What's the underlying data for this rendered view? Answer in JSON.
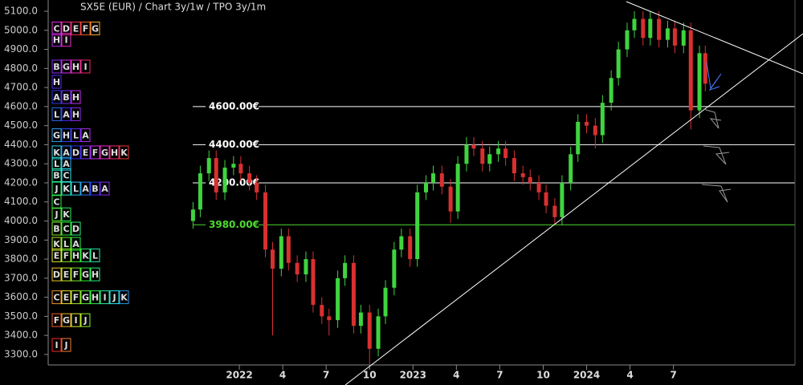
{
  "chart_data": {
    "type": "candlestick",
    "title": "SX5E (EUR) /  Chart 3y/1w / TPO 3y/1m",
    "x": [
      -3.2,
      -2.7,
      -2.1,
      -1.6,
      -1.0,
      -0.4,
      0.1,
      0.7,
      1.2,
      1.8,
      2.3,
      2.9,
      3.4,
      4.0,
      4.6,
      5.1,
      5.7,
      6.2,
      6.8,
      7.3,
      7.9,
      8.4,
      9.0,
      9.6,
      10.1,
      10.7,
      11.2,
      11.8,
      12.3,
      12.9,
      13.4,
      14.0,
      14.6,
      15.1,
      15.7,
      16.2,
      16.8,
      17.3,
      17.9,
      18.4,
      19.0,
      19.6,
      20.1,
      20.7,
      21.2,
      21.8,
      22.3,
      22.9,
      23.4,
      24.0,
      24.6,
      25.1,
      25.7,
      26.2,
      26.8,
      27.3,
      27.9,
      28.4,
      29.0,
      29.6,
      30.1,
      30.7,
      31.2,
      31.8,
      32.2
    ],
    "open": [
      4000,
      4060,
      4250,
      4330,
      4150,
      4280,
      4300,
      4250,
      4200,
      4150,
      3850,
      3750,
      3920,
      3780,
      3720,
      3800,
      3560,
      3500,
      3480,
      3700,
      3780,
      3450,
      3520,
      3330,
      3500,
      3650,
      3850,
      3920,
      3800,
      4150,
      4200,
      4250,
      4180,
      4050,
      4300,
      4400,
      4380,
      4300,
      4350,
      4380,
      4330,
      4250,
      4230,
      4200,
      4150,
      4080,
      4020,
      4200,
      4350,
      4520,
      4500,
      4450,
      4620,
      4750,
      4900,
      5000,
      5060,
      4960,
      5060,
      4950,
      5010,
      4920,
      5000,
      4580,
      4880
    ],
    "high": [
      4100,
      4290,
      4370,
      4370,
      4320,
      4340,
      4340,
      4290,
      4240,
      4190,
      3890,
      3960,
      3960,
      3820,
      3840,
      3840,
      3600,
      3540,
      3740,
      3820,
      3820,
      3560,
      3560,
      3540,
      3690,
      3890,
      3960,
      3960,
      4190,
      4240,
      4290,
      4290,
      4220,
      4340,
      4440,
      4440,
      4420,
      4390,
      4420,
      4420,
      4370,
      4290,
      4270,
      4240,
      4190,
      4120,
      4240,
      4390,
      4560,
      4560,
      4540,
      4660,
      4790,
      4940,
      5040,
      5100,
      5100,
      5100,
      5100,
      5050,
      5050,
      5040,
      5040,
      4920,
      4920
    ],
    "low": [
      3960,
      4020,
      4210,
      4110,
      4110,
      4240,
      4210,
      4160,
      4110,
      3810,
      3400,
      3710,
      3740,
      3680,
      3680,
      3520,
      3460,
      3400,
      3440,
      3660,
      3410,
      3410,
      3250,
      3290,
      3460,
      3610,
      3810,
      3760,
      3760,
      4110,
      4160,
      4140,
      3990,
      4010,
      4260,
      4340,
      4260,
      4260,
      4310,
      4290,
      4210,
      4190,
      4160,
      4110,
      4040,
      3980,
      3980,
      4160,
      4310,
      4460,
      4380,
      4410,
      4580,
      4710,
      4860,
      4960,
      4920,
      4920,
      4910,
      4910,
      4880,
      4880,
      4480,
      4540,
      4680
    ],
    "close": [
      4060,
      4250,
      4330,
      4150,
      4280,
      4300,
      4250,
      4200,
      4150,
      3850,
      3750,
      3920,
      3780,
      3720,
      3800,
      3560,
      3500,
      3480,
      3700,
      3780,
      3450,
      3520,
      3330,
      3500,
      3650,
      3850,
      3920,
      3800,
      4150,
      4200,
      4250,
      4180,
      4050,
      4300,
      4400,
      4380,
      4300,
      4350,
      4380,
      4330,
      4250,
      4230,
      4200,
      4150,
      4080,
      4020,
      4200,
      4350,
      4520,
      4500,
      4450,
      4620,
      4750,
      4900,
      5000,
      5060,
      4960,
      5060,
      4950,
      5010,
      4920,
      5000,
      4580,
      4880,
      4720
    ],
    "up_color": "#3fd43f",
    "down_color": "#d83030",
    "xlim": [
      -13.1,
      38.4
    ],
    "ylim": [
      3245,
      5159
    ],
    "xticks": [
      {
        "value": 0,
        "label": "2022"
      },
      {
        "value": 3,
        "label": "4"
      },
      {
        "value": 6,
        "label": "7"
      },
      {
        "value": 9,
        "label": "10"
      },
      {
        "value": 12,
        "label": "2023"
      },
      {
        "value": 15,
        "label": "4"
      },
      {
        "value": 18,
        "label": "7"
      },
      {
        "value": 21,
        "label": "10"
      },
      {
        "value": 24,
        "label": "2024"
      },
      {
        "value": 27,
        "label": "4"
      },
      {
        "value": 30,
        "label": "7"
      }
    ],
    "yticks": [
      {
        "value": 3300,
        "label": "3300.0"
      },
      {
        "value": 3400,
        "label": "3400.0"
      },
      {
        "value": 3500,
        "label": "3500.0"
      },
      {
        "value": 3600,
        "label": "3600.0"
      },
      {
        "value": 3700,
        "label": "3700.0"
      },
      {
        "value": 3800,
        "label": "3800.0"
      },
      {
        "value": 3900,
        "label": "3900.0"
      },
      {
        "value": 4000,
        "label": "4000.0"
      },
      {
        "value": 4100,
        "label": "4100.0"
      },
      {
        "value": 4200,
        "label": "4200.0"
      },
      {
        "value": 4300,
        "label": "4300.0"
      },
      {
        "value": 4400,
        "label": "4400.0"
      },
      {
        "value": 4500,
        "label": "4500.0"
      },
      {
        "value": 4600,
        "label": "4600.0"
      },
      {
        "value": 4700,
        "label": "4700.0"
      },
      {
        "value": 4800,
        "label": "4800.0"
      },
      {
        "value": 4900,
        "label": "4900.0"
      },
      {
        "value": 5000,
        "label": "5000.0"
      },
      {
        "value": 5100,
        "label": "5100.0"
      }
    ],
    "levels": [
      {
        "value": 4600,
        "label": "4600.00€",
        "color": "#ffffff"
      },
      {
        "value": 4400,
        "label": "4400.00€",
        "color": "#ffffff"
      },
      {
        "value": 4200,
        "label": "4200.00€",
        "color": "#ffffff"
      },
      {
        "value": 3980,
        "label": "3980.00€",
        "color": "#4cdc2c"
      }
    ],
    "tpo": [
      {
        "price": 5010,
        "letters": [
          "C",
          "D",
          "E",
          "F",
          "G"
        ]
      },
      {
        "price": 4950,
        "letters": [
          "H",
          "I"
        ]
      },
      {
        "price": 4810,
        "letters": [
          "B",
          "G",
          "H",
          "I"
        ]
      },
      {
        "price": 4730,
        "letters": [
          "H"
        ]
      },
      {
        "price": 4650,
        "letters": [
          "A",
          "B",
          "H"
        ]
      },
      {
        "price": 4560,
        "letters": [
          "L",
          "A",
          "H"
        ]
      },
      {
        "price": 4450,
        "letters": [
          "G",
          "H",
          "L",
          "A"
        ]
      },
      {
        "price": 4360,
        "letters": [
          "K",
          "A",
          "D",
          "E",
          "F",
          "G",
          "H",
          "K"
        ]
      },
      {
        "price": 4300,
        "letters": [
          "L",
          "A"
        ]
      },
      {
        "price": 4240,
        "letters": [
          "B",
          "C"
        ]
      },
      {
        "price": 4170,
        "letters": [
          "J",
          "K",
          "L",
          "A",
          "B",
          "A"
        ]
      },
      {
        "price": 4100,
        "letters": [
          "C"
        ]
      },
      {
        "price": 4035,
        "letters": [
          "J",
          "K"
        ]
      },
      {
        "price": 3960,
        "letters": [
          "B",
          "C",
          "D"
        ]
      },
      {
        "price": 3880,
        "letters": [
          "K",
          "L",
          "A"
        ]
      },
      {
        "price": 3820,
        "letters": [
          "E",
          "F",
          "H",
          "K",
          "L"
        ]
      },
      {
        "price": 3720,
        "letters": [
          "D",
          "E",
          "F",
          "G",
          "H"
        ]
      },
      {
        "price": 3600,
        "letters": [
          "C",
          "E",
          "F",
          "G",
          "H",
          "I",
          "J",
          "K"
        ]
      },
      {
        "price": 3480,
        "letters": [
          "F",
          "G",
          "I",
          "J"
        ]
      },
      {
        "price": 3350,
        "letters": [
          "I",
          "J"
        ]
      }
    ]
  }
}
